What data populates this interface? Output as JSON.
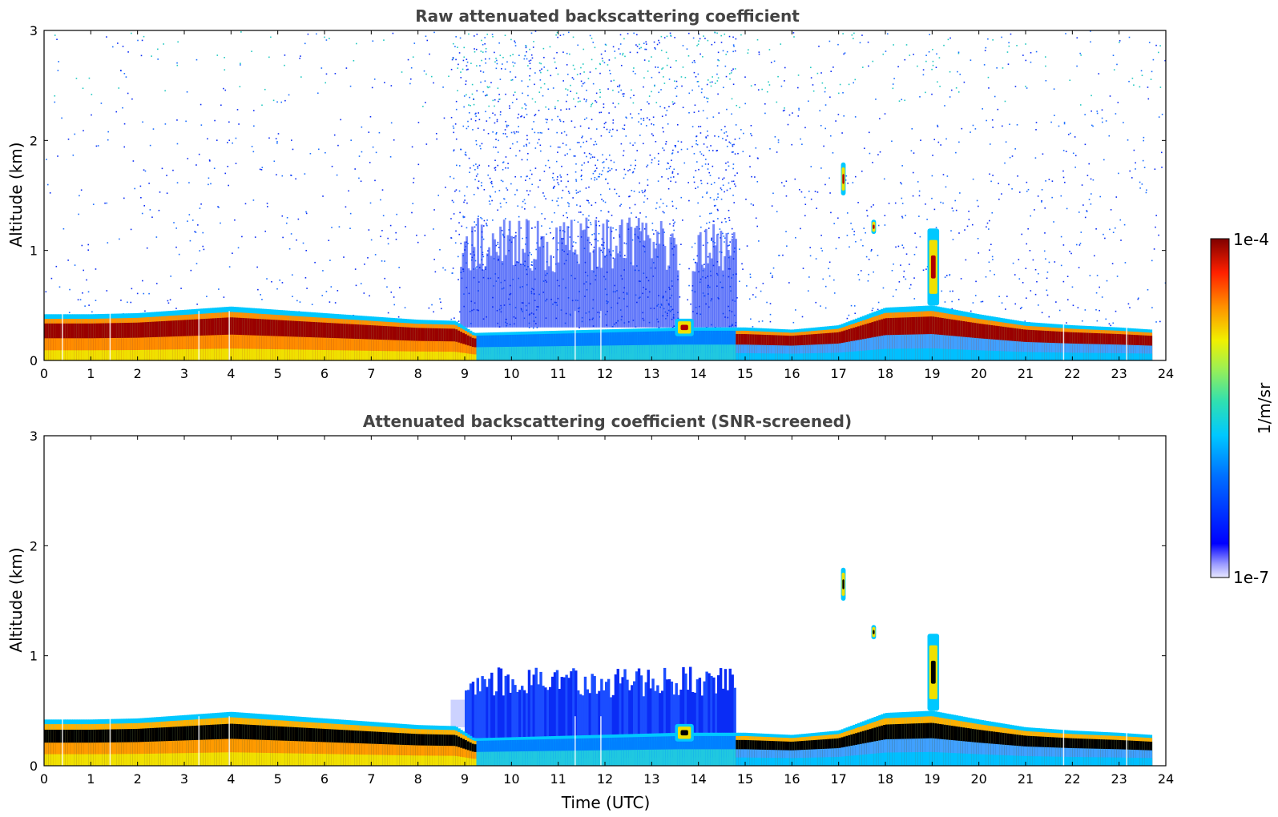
{
  "chart_data": [
    {
      "type": "heatmap",
      "title": "Raw attenuated backscattering coefficient",
      "xlabel": "",
      "ylabel": "Altitude (km)",
      "xlim": [
        0,
        24
      ],
      "ylim": [
        0,
        3
      ],
      "xticks": [
        "0",
        "1",
        "2",
        "3",
        "4",
        "5",
        "6",
        "7",
        "8",
        "9",
        "10",
        "11",
        "12",
        "13",
        "14",
        "15",
        "16",
        "17",
        "18",
        "19",
        "20",
        "21",
        "22",
        "23",
        "24"
      ],
      "yticks": [
        "0",
        "1",
        "2",
        "3"
      ],
      "color_scale": "jet (log)",
      "color_range": [
        "1e-7",
        "1e-4"
      ],
      "screened": false,
      "boundary_layer_top_km": [
        [
          0,
          0.42
        ],
        [
          1,
          0.42
        ],
        [
          2,
          0.43
        ],
        [
          3,
          0.46
        ],
        [
          4,
          0.49
        ],
        [
          5,
          0.46
        ],
        [
          6,
          0.43
        ],
        [
          7,
          0.4
        ],
        [
          8,
          0.37
        ],
        [
          8.8,
          0.36
        ],
        [
          9.2,
          0.25
        ],
        [
          13.6,
          0.3
        ],
        [
          14.7,
          0.3
        ],
        [
          15.0,
          0.3
        ],
        [
          16,
          0.28
        ],
        [
          17,
          0.32
        ],
        [
          18,
          0.48
        ],
        [
          19,
          0.5
        ],
        [
          20,
          0.42
        ],
        [
          21,
          0.35
        ],
        [
          22,
          0.32
        ],
        [
          23,
          0.3
        ],
        [
          23.7,
          0.28
        ]
      ],
      "features": [
        {
          "name": "aerosol layer",
          "t_start": 0,
          "t_end": 9.2,
          "alt_km": [
            0.0,
            0.45
          ]
        },
        {
          "name": "daytime noise",
          "t_start": 8.7,
          "t_end": 14.8,
          "alt_km": [
            0.3,
            3.0
          ]
        },
        {
          "name": "cloud",
          "t_start": 13.5,
          "t_end": 13.9,
          "alt_km": [
            0.22,
            0.38
          ]
        },
        {
          "name": "cloud",
          "t_start": 17.05,
          "t_end": 17.15,
          "alt_km": [
            1.5,
            1.8
          ]
        },
        {
          "name": "cloud",
          "t_start": 17.7,
          "t_end": 17.8,
          "alt_km": [
            1.15,
            1.28
          ]
        },
        {
          "name": "cloud",
          "t_start": 18.9,
          "t_end": 19.15,
          "alt_km": [
            0.5,
            1.2
          ]
        }
      ]
    },
    {
      "type": "heatmap",
      "title": "Attenuated backscattering coefficient (SNR-screened)",
      "xlabel": "Time (UTC)",
      "ylabel": "Altitude (km)",
      "xlim": [
        0,
        24
      ],
      "ylim": [
        0,
        3
      ],
      "xticks": [
        "0",
        "1",
        "2",
        "3",
        "4",
        "5",
        "6",
        "7",
        "8",
        "9",
        "10",
        "11",
        "12",
        "13",
        "14",
        "15",
        "16",
        "17",
        "18",
        "19",
        "20",
        "21",
        "22",
        "23",
        "24"
      ],
      "yticks": [
        "0",
        "1",
        "2",
        "3"
      ],
      "color_scale": "jet (log)",
      "color_range": [
        "1e-7",
        "1e-4"
      ],
      "screened": true,
      "boundary_layer_top_km": [
        [
          0,
          0.42
        ],
        [
          1,
          0.42
        ],
        [
          2,
          0.43
        ],
        [
          3,
          0.46
        ],
        [
          4,
          0.49
        ],
        [
          5,
          0.46
        ],
        [
          6,
          0.43
        ],
        [
          7,
          0.4
        ],
        [
          8,
          0.37
        ],
        [
          8.8,
          0.36
        ],
        [
          9.2,
          0.25
        ],
        [
          13.6,
          0.3
        ],
        [
          14.7,
          0.3
        ],
        [
          15.0,
          0.3
        ],
        [
          16,
          0.28
        ],
        [
          17,
          0.32
        ],
        [
          18,
          0.48
        ],
        [
          19,
          0.5
        ],
        [
          20,
          0.42
        ],
        [
          21,
          0.35
        ],
        [
          22,
          0.32
        ],
        [
          23,
          0.3
        ],
        [
          23.7,
          0.28
        ]
      ],
      "features": [
        {
          "name": "aerosol layer",
          "t_start": 0,
          "t_end": 9.2,
          "alt_km": [
            0.0,
            0.45
          ]
        },
        {
          "name": "daytime signal",
          "t_start": 8.7,
          "t_end": 14.8,
          "alt_km": [
            0.3,
            0.9
          ]
        },
        {
          "name": "cloud",
          "t_start": 13.5,
          "t_end": 13.9,
          "alt_km": [
            0.22,
            0.38
          ]
        },
        {
          "name": "cloud",
          "t_start": 17.05,
          "t_end": 17.15,
          "alt_km": [
            1.5,
            1.8
          ]
        },
        {
          "name": "cloud",
          "t_start": 17.7,
          "t_end": 17.8,
          "alt_km": [
            1.15,
            1.28
          ]
        },
        {
          "name": "cloud",
          "t_start": 18.9,
          "t_end": 19.15,
          "alt_km": [
            0.5,
            1.2
          ]
        }
      ]
    }
  ],
  "colorbar": {
    "label": "1/m/sr",
    "max_label": "1e-4",
    "min_label": "1e-7",
    "colormap": "jet"
  }
}
